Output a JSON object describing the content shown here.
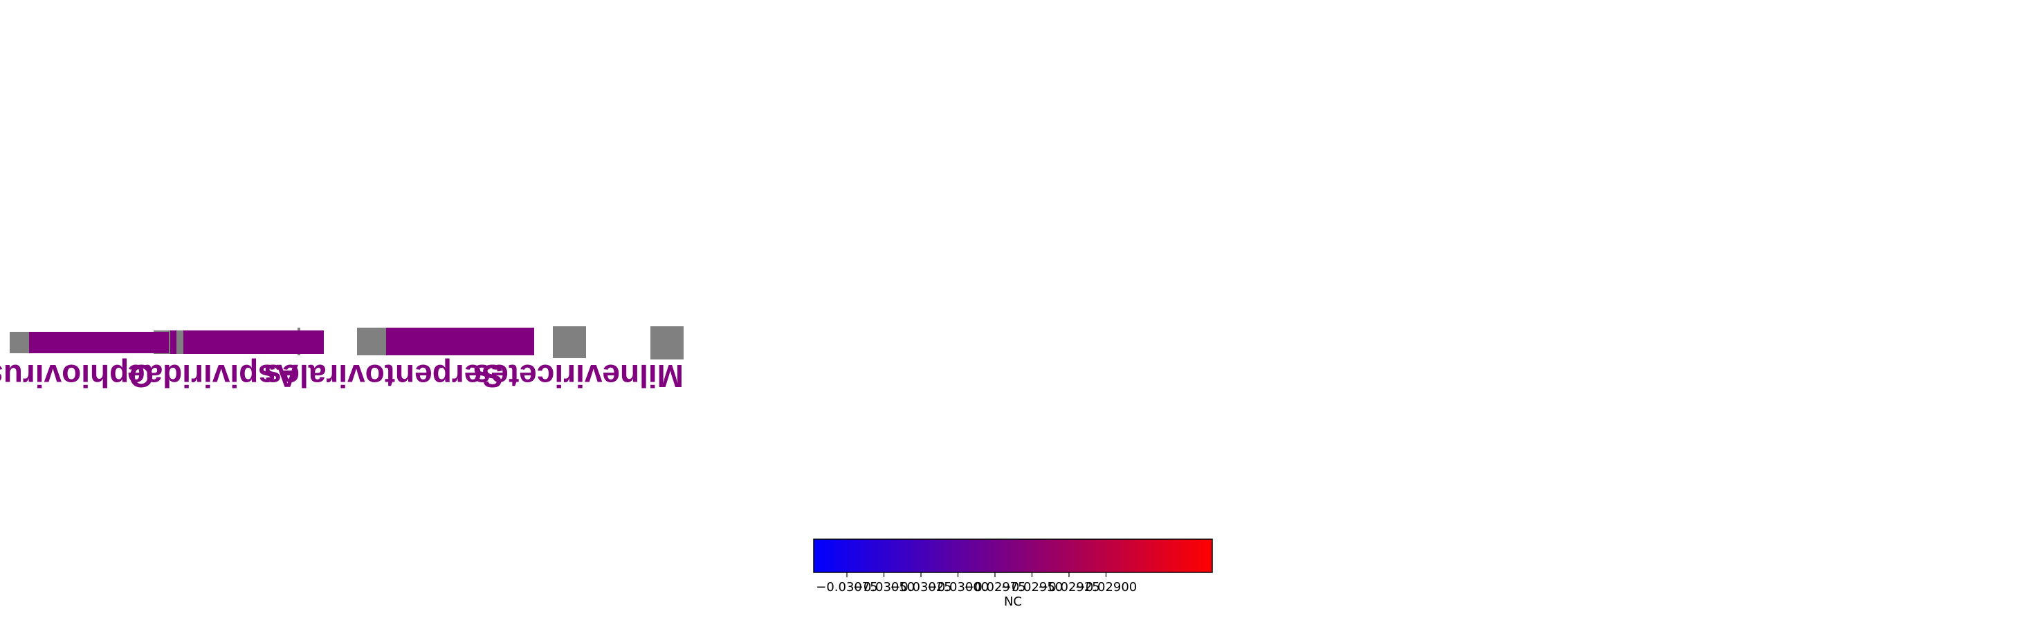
{
  "chart_data": {
    "type": "bar",
    "colors": {
      "mapped": "#800080",
      "unmapped": "#808080",
      "cmap_low": "#0000ff",
      "cmap_high": "#ff0000"
    },
    "ranks": [
      {
        "label": "Milneviricetes",
        "segments": [
          {
            "kind": "unmapped",
            "value": 1.0
          }
        ]
      },
      {
        "label": "Serpentovirales",
        "segments": [
          {
            "kind": "unmapped",
            "value": 0.48
          },
          {
            "kind": "unmapped",
            "value": 0.52
          }
        ]
      },
      {
        "label": "Aspiviridae",
        "segments": [
          {
            "kind": "unmapped",
            "value": 0.05
          },
          {
            "kind": "mapped",
            "value": 0.7
          },
          {
            "kind": "unmapped",
            "value": 0.15
          }
        ]
      },
      {
        "label": "Ophiovirus",
        "segments": [
          {
            "kind": "mapped",
            "value": 0.9
          },
          {
            "kind": "unmapped",
            "value": 0.1
          }
        ]
      }
    ],
    "colorbar": {
      "label": "NC",
      "ticks": [
        "−0.03075",
        "−0.03050",
        "−0.03025",
        "−0.03000",
        "−0.02975",
        "−0.02950",
        "−0.02925",
        "−0.02900"
      ]
    }
  }
}
